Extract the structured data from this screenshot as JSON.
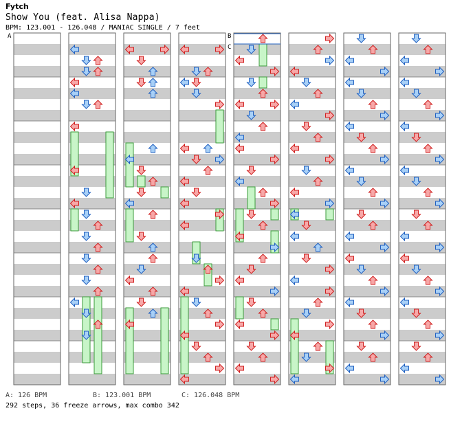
{
  "header": {
    "artist": "Fytch",
    "title": "Show You (feat. Alisa Nappa)",
    "info": "BPM: 123.001 - 126.048 / MANIAC SINGLE / 7 feet"
  },
  "bpm_markers": [
    {
      "label": "A",
      "value": "126 BPM"
    },
    {
      "label": "B",
      "value": "123.001 BPM"
    },
    {
      "label": "C",
      "value": "126.048 BPM"
    }
  ],
  "legend": {
    "a": "A: 126 BPM",
    "b": "B: 123.001 BPM",
    "c": "C: 126.048 BPM"
  },
  "summary": "292 steps, 36 freeze arrows, max combo 342",
  "colors": {
    "quarter": "#f7a8a8",
    "eighth": "#a8d0f7",
    "sixteenth": "#f0b0f0",
    "twelfth": "#f7f080",
    "freeze": "#c8f5c8",
    "arrow_outline_red": "#d02020",
    "arrow_outline_blue": "#2060c0",
    "stripe": "#cccccc"
  },
  "columns": [
    {
      "notes": [],
      "freezes": []
    },
    {
      "notes": [
        [
          0,
          4,
          "b"
        ],
        [
          1,
          0,
          "b"
        ],
        [
          1,
          4,
          "r"
        ],
        [
          2,
          1,
          "b"
        ],
        [
          2,
          2,
          "r"
        ],
        [
          3,
          2,
          "r"
        ],
        [
          3,
          1,
          "b"
        ],
        [
          4,
          0,
          "r"
        ],
        [
          5,
          0,
          "b"
        ],
        [
          6,
          1,
          "b"
        ],
        [
          6,
          2,
          "r"
        ],
        [
          8,
          0,
          "r"
        ],
        [
          12,
          0,
          "r"
        ],
        [
          14,
          1,
          "b"
        ],
        [
          15,
          0,
          "r"
        ],
        [
          16,
          1,
          "b"
        ],
        [
          17,
          2,
          "r"
        ],
        [
          18,
          1,
          "b"
        ],
        [
          19,
          2,
          "r"
        ],
        [
          20,
          1,
          "b"
        ],
        [
          21,
          2,
          "r"
        ],
        [
          22,
          1,
          "b"
        ],
        [
          23,
          2,
          "r"
        ],
        [
          24,
          0,
          "b"
        ],
        [
          25,
          1,
          "b"
        ],
        [
          26,
          2,
          "r"
        ],
        [
          27,
          1,
          "b"
        ]
      ],
      "freezes": [
        [
          0,
          9,
          13
        ],
        [
          3,
          9,
          15
        ],
        [
          0,
          16,
          18
        ],
        [
          1,
          24,
          30
        ],
        [
          2,
          24,
          31
        ]
      ]
    },
    {
      "notes": [
        [
          1,
          0,
          "r"
        ],
        [
          1,
          3,
          "r"
        ],
        [
          2,
          1,
          "r"
        ],
        [
          3,
          2,
          "b"
        ],
        [
          4,
          1,
          "r"
        ],
        [
          4,
          2,
          "b"
        ],
        [
          5,
          2,
          "b"
        ],
        [
          10,
          2,
          "b"
        ],
        [
          11,
          0,
          "b"
        ],
        [
          12,
          1,
          "r"
        ],
        [
          13,
          2,
          "r"
        ],
        [
          14,
          1,
          "r"
        ],
        [
          15,
          0,
          "b"
        ],
        [
          16,
          2,
          "r"
        ],
        [
          18,
          1,
          "r"
        ],
        [
          19,
          2,
          "b"
        ],
        [
          20,
          2,
          "r"
        ],
        [
          21,
          1,
          "b"
        ],
        [
          22,
          0,
          "r"
        ],
        [
          23,
          2,
          "r"
        ],
        [
          24,
          1,
          "r"
        ],
        [
          25,
          2,
          "b"
        ],
        [
          26,
          0,
          "r"
        ]
      ],
      "freezes": [
        [
          0,
          10,
          14
        ],
        [
          1,
          13,
          14
        ],
        [
          3,
          14,
          15
        ],
        [
          0,
          16,
          19
        ],
        [
          0,
          25,
          31
        ],
        [
          3,
          25,
          31
        ]
      ]
    },
    {
      "notes": [
        [
          1,
          0,
          "r"
        ],
        [
          1,
          3,
          "r"
        ],
        [
          3,
          1,
          "b"
        ],
        [
          3,
          2,
          "r"
        ],
        [
          4,
          1,
          "r"
        ],
        [
          4,
          0,
          "b"
        ],
        [
          5,
          1,
          "b"
        ],
        [
          6,
          3,
          "r"
        ],
        [
          10,
          0,
          "r"
        ],
        [
          10,
          2,
          "b"
        ],
        [
          11,
          1,
          "r"
        ],
        [
          11,
          3,
          "b"
        ],
        [
          12,
          2,
          "r"
        ],
        [
          13,
          0,
          "r"
        ],
        [
          14,
          1,
          "r"
        ],
        [
          15,
          0,
          "r"
        ],
        [
          16,
          3,
          "r"
        ],
        [
          17,
          0,
          "r"
        ],
        [
          20,
          1,
          "b"
        ],
        [
          21,
          2,
          "r"
        ],
        [
          22,
          3,
          "r"
        ],
        [
          23,
          0,
          "r"
        ],
        [
          24,
          1,
          "b"
        ],
        [
          25,
          2,
          "r"
        ],
        [
          26,
          3,
          "r"
        ],
        [
          27,
          0,
          "r"
        ],
        [
          28,
          1,
          "r"
        ],
        [
          29,
          2,
          "r"
        ],
        [
          30,
          3,
          "r"
        ],
        [
          31,
          0,
          "r"
        ]
      ],
      "freezes": [
        [
          3,
          7,
          10
        ],
        [
          1,
          19,
          21
        ],
        [
          2,
          21,
          23
        ],
        [
          0,
          24,
          31
        ],
        [
          3,
          16,
          18
        ]
      ]
    },
    {
      "notes": [
        [
          0,
          2,
          "r"
        ],
        [
          1,
          1,
          "b"
        ],
        [
          2,
          0,
          "r"
        ],
        [
          3,
          3,
          "r"
        ],
        [
          4,
          1,
          "b"
        ],
        [
          5,
          2,
          "r"
        ],
        [
          6,
          0,
          "r"
        ],
        [
          6,
          3,
          "r"
        ],
        [
          7,
          1,
          "b"
        ],
        [
          8,
          2,
          "r"
        ],
        [
          9,
          0,
          "b"
        ],
        [
          10,
          0,
          "r"
        ],
        [
          11,
          3,
          "r"
        ],
        [
          12,
          1,
          "r"
        ],
        [
          13,
          0,
          "b"
        ],
        [
          14,
          2,
          "r"
        ],
        [
          15,
          3,
          "r"
        ],
        [
          16,
          1,
          "r"
        ],
        [
          17,
          2,
          "r"
        ],
        [
          18,
          0,
          "r"
        ],
        [
          19,
          3,
          "b"
        ],
        [
          20,
          2,
          "r"
        ],
        [
          21,
          1,
          "r"
        ],
        [
          22,
          0,
          "r"
        ],
        [
          23,
          3,
          "b"
        ],
        [
          24,
          1,
          "r"
        ],
        [
          25,
          2,
          "r"
        ],
        [
          26,
          0,
          "r"
        ],
        [
          27,
          3,
          "r"
        ],
        [
          28,
          1,
          "r"
        ],
        [
          29,
          2,
          "r"
        ],
        [
          30,
          0,
          "r"
        ],
        [
          31,
          3,
          "r"
        ]
      ],
      "freezes": [
        [
          2,
          1,
          3
        ],
        [
          2,
          4,
          5
        ],
        [
          1,
          14,
          16
        ],
        [
          0,
          16,
          19
        ],
        [
          3,
          16,
          17
        ],
        [
          3,
          18,
          20
        ],
        [
          0,
          24,
          26
        ],
        [
          3,
          26,
          27
        ]
      ]
    },
    {
      "notes": [
        [
          0,
          3,
          "r"
        ],
        [
          1,
          2,
          "r"
        ],
        [
          2,
          3,
          "b"
        ],
        [
          3,
          0,
          "r"
        ],
        [
          4,
          1,
          "b"
        ],
        [
          5,
          2,
          "r"
        ],
        [
          6,
          0,
          "b"
        ],
        [
          7,
          3,
          "r"
        ],
        [
          8,
          1,
          "r"
        ],
        [
          9,
          2,
          "r"
        ],
        [
          10,
          0,
          "r"
        ],
        [
          11,
          3,
          "r"
        ],
        [
          12,
          1,
          "b"
        ],
        [
          13,
          2,
          "r"
        ],
        [
          14,
          0,
          "r"
        ],
        [
          15,
          3,
          "b"
        ],
        [
          16,
          0,
          "b"
        ],
        [
          17,
          1,
          "r"
        ],
        [
          18,
          0,
          "b"
        ],
        [
          19,
          2,
          "b"
        ],
        [
          20,
          1,
          "r"
        ],
        [
          21,
          3,
          "r"
        ],
        [
          22,
          0,
          "b"
        ],
        [
          23,
          3,
          "r"
        ],
        [
          24,
          2,
          "r"
        ],
        [
          25,
          1,
          "b"
        ],
        [
          26,
          3,
          "r"
        ],
        [
          27,
          0,
          "r"
        ],
        [
          28,
          2,
          "r"
        ],
        [
          29,
          1,
          "b"
        ],
        [
          30,
          3,
          "r"
        ],
        [
          31,
          0,
          "b"
        ]
      ],
      "freezes": [
        [
          0,
          16,
          17
        ],
        [
          3,
          16,
          17
        ],
        [
          0,
          26,
          31
        ],
        [
          3,
          28,
          31
        ]
      ]
    },
    {
      "notes": [
        [
          0,
          1,
          "b"
        ],
        [
          1,
          2,
          "r"
        ],
        [
          2,
          0,
          "b"
        ],
        [
          3,
          3,
          "b"
        ],
        [
          4,
          0,
          "b"
        ],
        [
          5,
          1,
          "b"
        ],
        [
          6,
          2,
          "r"
        ],
        [
          7,
          3,
          "b"
        ],
        [
          8,
          0,
          "b"
        ],
        [
          9,
          1,
          "r"
        ],
        [
          10,
          2,
          "r"
        ],
        [
          11,
          3,
          "b"
        ],
        [
          12,
          0,
          "b"
        ],
        [
          13,
          1,
          "b"
        ],
        [
          14,
          2,
          "r"
        ],
        [
          15,
          3,
          "b"
        ],
        [
          16,
          1,
          "r"
        ],
        [
          17,
          2,
          "r"
        ],
        [
          18,
          0,
          "b"
        ],
        [
          19,
          3,
          "b"
        ],
        [
          20,
          0,
          "r"
        ],
        [
          21,
          1,
          "b"
        ],
        [
          22,
          2,
          "r"
        ],
        [
          23,
          3,
          "b"
        ],
        [
          24,
          0,
          "b"
        ],
        [
          25,
          1,
          "r"
        ],
        [
          26,
          2,
          "r"
        ],
        [
          27,
          3,
          "b"
        ],
        [
          28,
          1,
          "r"
        ],
        [
          29,
          2,
          "r"
        ],
        [
          30,
          0,
          "b"
        ],
        [
          31,
          3,
          "b"
        ]
      ],
      "freezes": []
    },
    {
      "notes": [
        [
          0,
          1,
          "b"
        ],
        [
          1,
          2,
          "r"
        ],
        [
          2,
          0,
          "b"
        ],
        [
          3,
          3,
          "b"
        ],
        [
          4,
          0,
          "b"
        ],
        [
          5,
          1,
          "b"
        ],
        [
          6,
          2,
          "r"
        ],
        [
          7,
          3,
          "b"
        ],
        [
          8,
          0,
          "b"
        ],
        [
          9,
          1,
          "r"
        ],
        [
          10,
          2,
          "r"
        ],
        [
          11,
          3,
          "b"
        ],
        [
          12,
          0,
          "b"
        ],
        [
          13,
          1,
          "b"
        ],
        [
          14,
          2,
          "r"
        ],
        [
          15,
          3,
          "b"
        ],
        [
          16,
          1,
          "r"
        ],
        [
          17,
          2,
          "r"
        ],
        [
          18,
          0,
          "b"
        ],
        [
          19,
          3,
          "b"
        ],
        [
          20,
          0,
          "r"
        ],
        [
          21,
          1,
          "b"
        ],
        [
          22,
          2,
          "r"
        ],
        [
          23,
          3,
          "b"
        ],
        [
          24,
          0,
          "b"
        ],
        [
          25,
          1,
          "r"
        ],
        [
          26,
          2,
          "r"
        ],
        [
          27,
          3,
          "b"
        ],
        [
          28,
          1,
          "r"
        ],
        [
          29,
          2,
          "r"
        ],
        [
          30,
          0,
          "b"
        ],
        [
          31,
          3,
          "b"
        ]
      ],
      "freezes": []
    }
  ]
}
